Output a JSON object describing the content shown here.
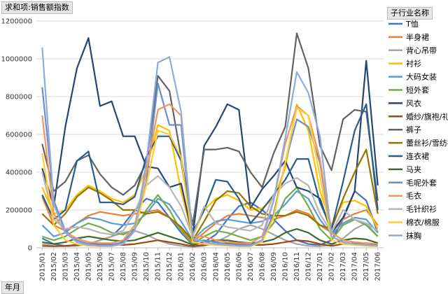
{
  "pivot": {
    "value_field": "求和项:销售额指数",
    "legend_field": "子行业名称",
    "axis_field": "年月"
  },
  "chart_data": {
    "type": "line",
    "title": "",
    "xlabel": "",
    "ylabel": "",
    "ylim": [
      0,
      1200000
    ],
    "yticks": [
      "0",
      "200000",
      "400000",
      "600000",
      "800000",
      "1000000",
      "1200000"
    ],
    "grid": true,
    "legend_position": "right",
    "categories": [
      "2015/01",
      "2015/02",
      "2015/03",
      "2015/04",
      "2015/05",
      "2015/06",
      "2015/07",
      "2015/08",
      "2015/09",
      "2015/10",
      "2015/11",
      "2015/12",
      "2016/01",
      "2016/02",
      "2016/03",
      "2016/04",
      "2016/05",
      "2016/06",
      "2016/07",
      "2016/08",
      "2016/09",
      "2016/10",
      "2016/11",
      "2016/12",
      "2017/01",
      "2017/02",
      "2017/03",
      "2017/04",
      "2017/05",
      "2017/06"
    ],
    "series": [
      {
        "name": "T恤",
        "color": "#4472c4",
        "values": [
          50000,
          20000,
          10000,
          15000,
          20000,
          40000,
          60000,
          120000,
          200000,
          260000,
          240000,
          160000,
          80000,
          15000,
          30000,
          70000,
          150000,
          220000,
          240000,
          200000,
          150000,
          90000,
          40000,
          20000,
          15000,
          40000,
          150000,
          300000,
          250000,
          80000
        ]
      },
      {
        "name": "半身裙",
        "color": "#ed7d31",
        "values": [
          270000,
          120000,
          90000,
          130000,
          170000,
          190000,
          180000,
          170000,
          180000,
          190000,
          200000,
          160000,
          100000,
          30000,
          80000,
          130000,
          170000,
          180000,
          170000,
          160000,
          150000,
          170000,
          200000,
          180000,
          120000,
          80000,
          150000,
          180000,
          200000,
          120000
        ]
      },
      {
        "name": "背心吊带",
        "color": "#a5a5a5",
        "values": [
          20000,
          10000,
          8000,
          10000,
          20000,
          40000,
          60000,
          80000,
          90000,
          70000,
          40000,
          20000,
          10000,
          5000,
          10000,
          30000,
          60000,
          100000,
          120000,
          100000,
          70000,
          40000,
          20000,
          10000,
          8000,
          15000,
          50000,
          100000,
          130000,
          60000
        ]
      },
      {
        "name": "衬衫",
        "color": "#ffc000",
        "values": [
          320000,
          180000,
          200000,
          280000,
          330000,
          300000,
          260000,
          240000,
          280000,
          420000,
          650000,
          620000,
          300000,
          60000,
          200000,
          260000,
          280000,
          250000,
          200000,
          210000,
          260000,
          420000,
          760000,
          620000,
          300000,
          120000,
          240000,
          250000,
          220000,
          100000
        ]
      },
      {
        "name": "大码女装",
        "color": "#5b9bd5",
        "values": [
          120000,
          60000,
          80000,
          130000,
          160000,
          150000,
          130000,
          120000,
          130000,
          180000,
          260000,
          230000,
          140000,
          40000,
          100000,
          140000,
          150000,
          140000,
          130000,
          140000,
          170000,
          230000,
          300000,
          260000,
          150000,
          70000,
          130000,
          160000,
          150000,
          80000
        ]
      },
      {
        "name": "短外套",
        "color": "#70ad47",
        "values": [
          60000,
          40000,
          60000,
          100000,
          130000,
          110000,
          80000,
          70000,
          100000,
          200000,
          280000,
          200000,
          90000,
          20000,
          60000,
          90000,
          80000,
          60000,
          40000,
          60000,
          130000,
          260000,
          320000,
          220000,
          100000,
          40000,
          120000,
          150000,
          120000,
          60000
        ]
      },
      {
        "name": "风衣",
        "color": "#264478",
        "values": [
          420000,
          220000,
          640000,
          950000,
          1110000,
          750000,
          775000,
          590000,
          590000,
          430000,
          420000,
          320000,
          340000,
          60000,
          540000,
          640000,
          760000,
          730000,
          210000,
          310000,
          380000,
          460000,
          320000,
          300000,
          260000,
          80000,
          160000,
          300000,
          990000,
          330000
        ]
      },
      {
        "name": "婚纱/旗袍/礼服",
        "color": "#9e480e",
        "values": [
          10000,
          8000,
          10000,
          15000,
          20000,
          20000,
          18000,
          15000,
          20000,
          30000,
          40000,
          30000,
          20000,
          8000,
          15000,
          20000,
          25000,
          20000,
          15000,
          15000,
          20000,
          30000,
          40000,
          35000,
          20000,
          10000,
          20000,
          25000,
          25000,
          15000
        ]
      },
      {
        "name": "裤子",
        "color": "#636363",
        "values": [
          550000,
          300000,
          350000,
          460000,
          490000,
          390000,
          320000,
          280000,
          330000,
          450000,
          910000,
          830000,
          480000,
          120000,
          520000,
          520000,
          530000,
          510000,
          400000,
          320000,
          500000,
          640000,
          1135000,
          950000,
          540000,
          410000,
          680000,
          730000,
          720000,
          250000
        ]
      },
      {
        "name": "蕾丝衫/雪纺衫",
        "color": "#997300",
        "values": [
          180000,
          120000,
          180000,
          270000,
          320000,
          290000,
          250000,
          200000,
          200000,
          180000,
          190000,
          160000,
          110000,
          40000,
          140000,
          250000,
          300000,
          290000,
          220000,
          180000,
          170000,
          170000,
          190000,
          170000,
          120000,
          100000,
          260000,
          400000,
          520000,
          180000
        ]
      },
      {
        "name": "连衣裙",
        "color": "#255e91",
        "values": [
          280000,
          150000,
          200000,
          460000,
          510000,
          240000,
          240000,
          230000,
          270000,
          480000,
          590000,
          590000,
          460000,
          80000,
          200000,
          360000,
          350000,
          260000,
          130000,
          200000,
          280000,
          360000,
          470000,
          470000,
          240000,
          100000,
          350000,
          620000,
          760000,
          200000
        ]
      },
      {
        "name": "马夹",
        "color": "#43682b",
        "values": [
          30000,
          20000,
          30000,
          50000,
          60000,
          50000,
          40000,
          35000,
          40000,
          60000,
          80000,
          60000,
          40000,
          15000,
          30000,
          40000,
          40000,
          30000,
          25000,
          30000,
          45000,
          80000,
          100000,
          80000,
          40000,
          20000,
          40000,
          50000,
          45000,
          25000
        ]
      },
      {
        "name": "毛呢外套",
        "color": "#698ed0",
        "values": [
          850000,
          250000,
          90000,
          40000,
          20000,
          15000,
          15000,
          30000,
          100000,
          350000,
          870000,
          650000,
          650000,
          30000,
          40000,
          30000,
          20000,
          15000,
          15000,
          40000,
          180000,
          450000,
          680000,
          640000,
          450000,
          60000,
          30000,
          20000,
          15000,
          10000
        ]
      },
      {
        "name": "毛衣",
        "color": "#f1975a",
        "values": [
          700000,
          180000,
          80000,
          50000,
          30000,
          25000,
          25000,
          40000,
          120000,
          400000,
          730000,
          760000,
          700000,
          60000,
          60000,
          40000,
          30000,
          25000,
          25000,
          60000,
          250000,
          550000,
          750000,
          700000,
          470000,
          80000,
          40000,
          30000,
          25000,
          20000
        ]
      },
      {
        "name": "毛针织衫",
        "color": "#b7b7b7",
        "values": [
          400000,
          150000,
          100000,
          110000,
          100000,
          80000,
          70000,
          90000,
          190000,
          330000,
          380000,
          320000,
          220000,
          60000,
          220000,
          130000,
          110000,
          100000,
          90000,
          120000,
          280000,
          340000,
          370000,
          330000,
          180000,
          80000,
          200000,
          150000,
          130000,
          90000
        ]
      },
      {
        "name": "棉衣/棉服",
        "color": "#ffcd33",
        "values": [
          500000,
          120000,
          40000,
          20000,
          10000,
          8000,
          8000,
          20000,
          90000,
          330000,
          620000,
          600000,
          480000,
          30000,
          20000,
          15000,
          10000,
          8000,
          8000,
          30000,
          160000,
          450000,
          740000,
          700000,
          380000,
          40000,
          20000,
          15000,
          10000,
          8000
        ]
      },
      {
        "name": "抹胸",
        "color": "#8faadc",
        "values": [
          1060000,
          230000,
          80000,
          30000,
          15000,
          10000,
          10000,
          20000,
          90000,
          450000,
          980000,
          1010000,
          720000,
          50000,
          30000,
          20000,
          15000,
          10000,
          10000,
          40000,
          250000,
          580000,
          930000,
          820000,
          590000,
          60000,
          30000,
          20000,
          15000,
          10000
        ]
      }
    ]
  }
}
